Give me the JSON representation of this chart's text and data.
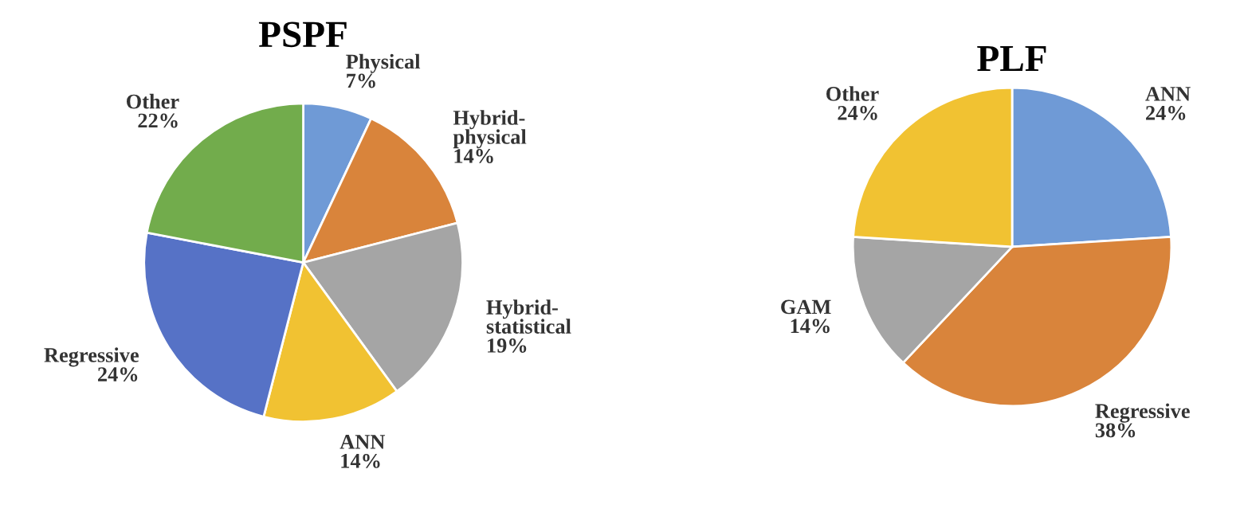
{
  "chart_data": [
    {
      "type": "pie",
      "title": "PSPF",
      "categories": [
        "Physical",
        "Hybrid-physical",
        "Hybrid-statistical",
        "ANN",
        "Regressive",
        "Other"
      ],
      "values": [
        7,
        14,
        19,
        14,
        24,
        22
      ],
      "value_labels": [
        "7%",
        "14%",
        "19%",
        "14%",
        "24%",
        "22%"
      ],
      "colors": [
        "#6f9ad6",
        "#d9843b",
        "#a5a5a5",
        "#f1c232",
        "#5672c6",
        "#72ac4c"
      ]
    },
    {
      "type": "pie",
      "title": "PLF",
      "categories": [
        "ANN",
        "Regressive",
        "GAM",
        "Other"
      ],
      "values": [
        24,
        38,
        14,
        24
      ],
      "value_labels": [
        "24%",
        "38%",
        "14%",
        "24%"
      ],
      "colors": [
        "#6f9ad6",
        "#d9843b",
        "#a5a5a5",
        "#f1c232"
      ]
    }
  ]
}
